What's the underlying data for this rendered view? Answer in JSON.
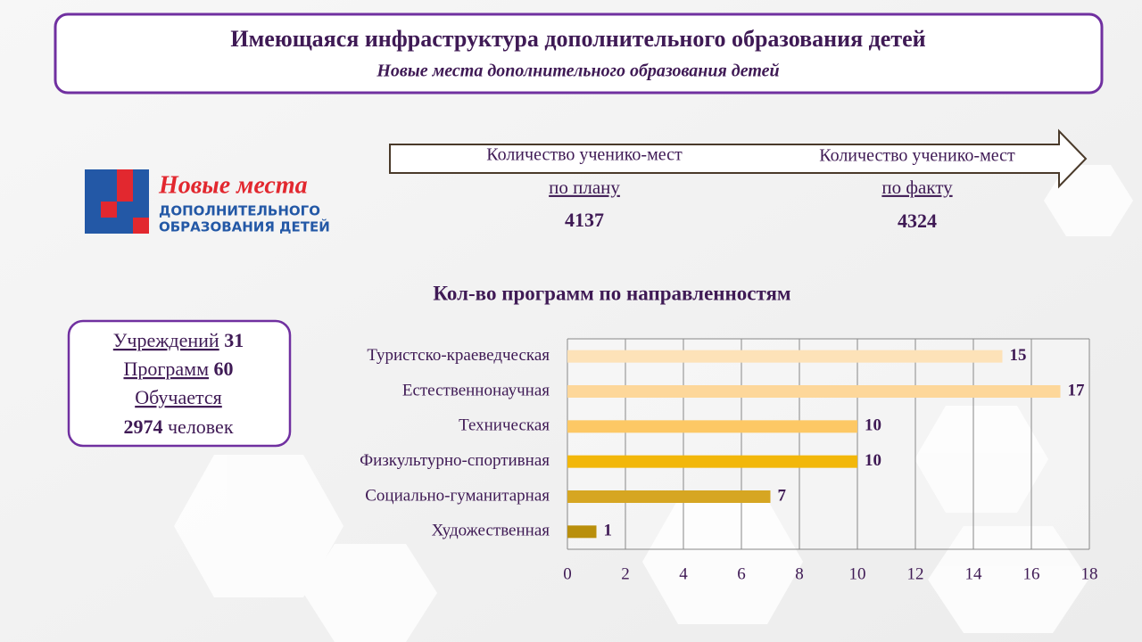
{
  "header": {
    "title": "Имеющаяся инфраструктура дополнительного образования детей",
    "subtitle": "Новые места дополнительного образования детей"
  },
  "logo": {
    "title": "Новые места",
    "line1": "ДОПОЛНИТЕЛЬНОГО",
    "line2": "ОБРАЗОВАНИЯ ДЕТЕЙ"
  },
  "places": {
    "plan": {
      "label": "Количество ученико-мест",
      "sub": "по плану",
      "value": "4137"
    },
    "fact": {
      "label": "Количество ученико-мест",
      "sub": "по факту",
      "value": "4324"
    }
  },
  "summary": {
    "institutions_label": "Учреждений",
    "institutions": "31",
    "programs_label": "Программ",
    "programs": "60",
    "students_label": "Обучается",
    "students": "2974",
    "students_unit": "человек"
  },
  "chart_data": {
    "type": "hbar",
    "title": "Кол-во программ по направленностям",
    "categories": [
      "Туристско-краеведческая",
      "Естественнонаучная",
      "Техническая",
      "Физкультурно-спортивная",
      "Социально-гуманитарная",
      "Художественная"
    ],
    "values": [
      15,
      17,
      10,
      10,
      7,
      1
    ],
    "colors": [
      "#fde2b8",
      "#fdd79a",
      "#fdc865",
      "#f2b70a",
      "#d6a622",
      "#b98f0c"
    ],
    "xlim": [
      0,
      18
    ],
    "xticks": [
      0,
      2,
      4,
      6,
      8,
      10,
      12,
      14,
      16,
      18
    ],
    "grid": true
  }
}
